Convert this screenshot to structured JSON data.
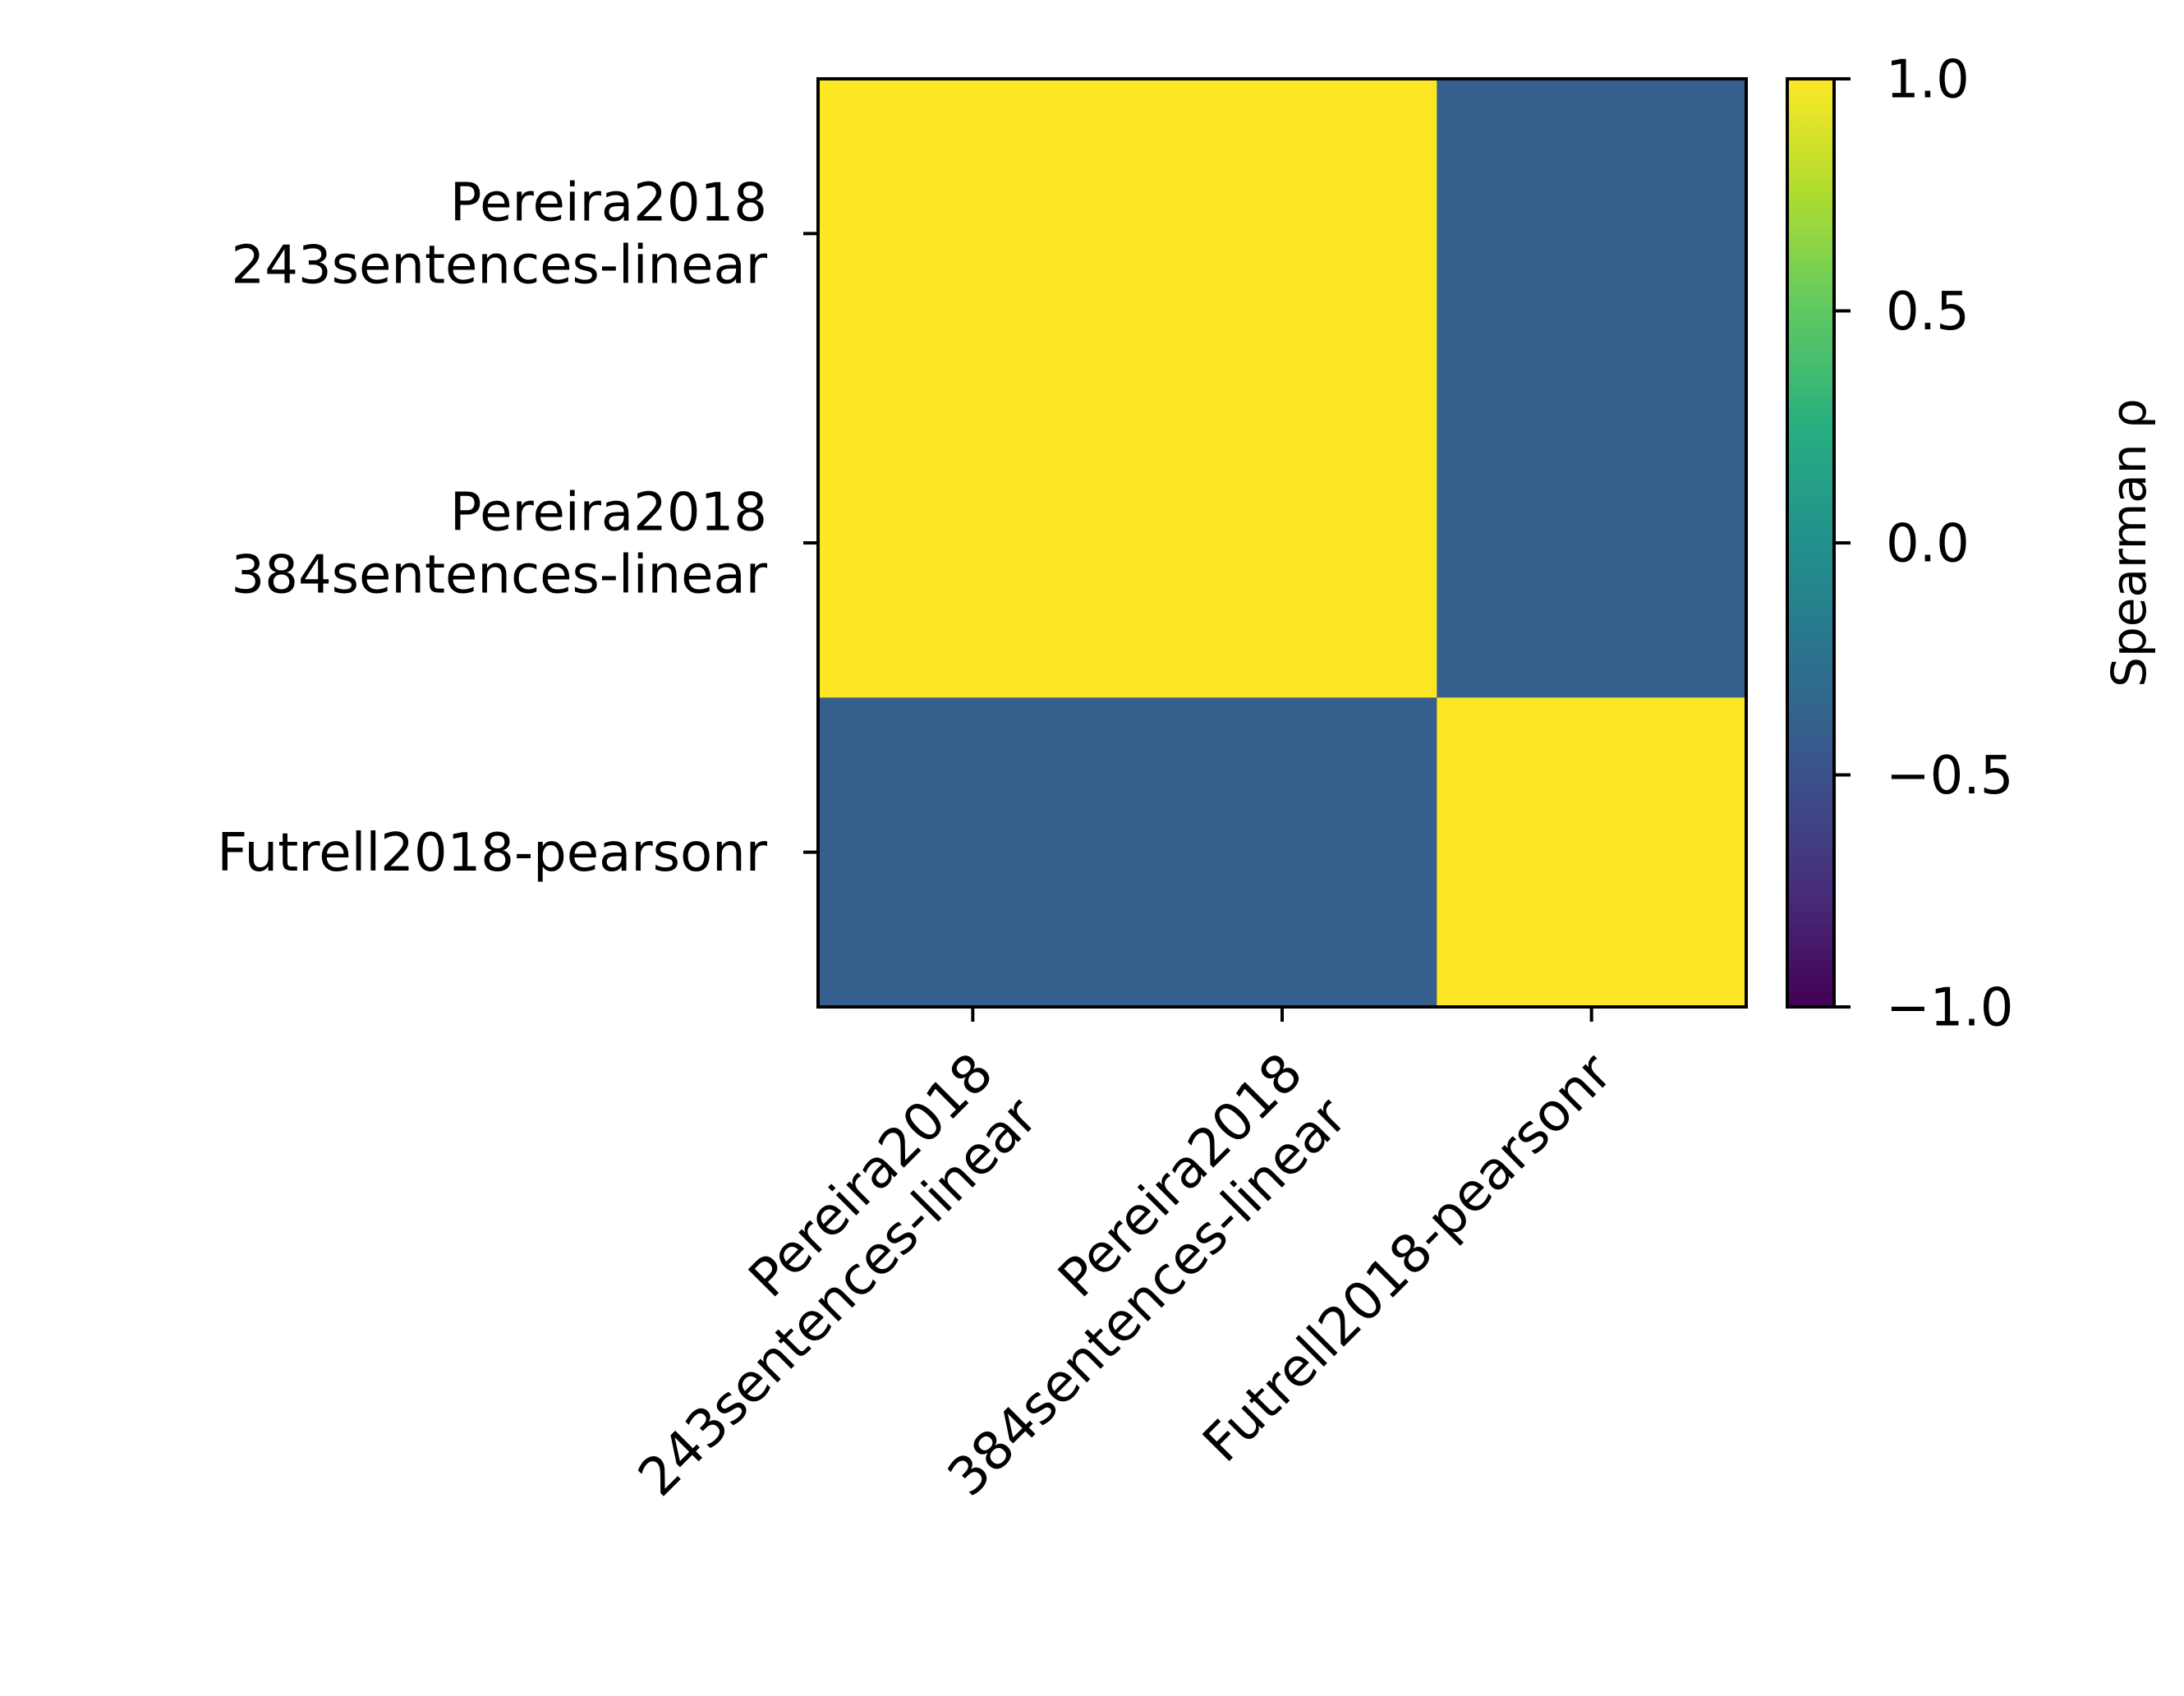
{
  "chart_data": {
    "type": "heatmap",
    "title": "",
    "xlabel": "",
    "ylabel": "",
    "rows": [
      [
        "Pereira2018",
        "243sentences-linear"
      ],
      [
        "Pereira2018",
        "384sentences-linear"
      ],
      [
        "Futrell2018-pearsonr"
      ]
    ],
    "columns": [
      [
        "Pereira2018",
        "243sentences-linear"
      ],
      [
        "Pereira2018",
        "384sentences-linear"
      ],
      [
        "Futrell2018-pearsonr"
      ]
    ],
    "values": [
      [
        1.0,
        1.0,
        -0.4
      ],
      [
        1.0,
        1.0,
        -0.4
      ],
      [
        -0.4,
        -0.4,
        1.0
      ]
    ],
    "colormap": "viridis",
    "colorbar": {
      "label": "Spearman ρ",
      "range": [
        -1.0,
        1.0
      ],
      "ticks": [
        1.0,
        0.5,
        0.0,
        -0.5,
        -1.0
      ],
      "tick_labels": [
        "1.0",
        "0.5",
        "0.0",
        "−0.5",
        "−1.0"
      ]
    }
  }
}
